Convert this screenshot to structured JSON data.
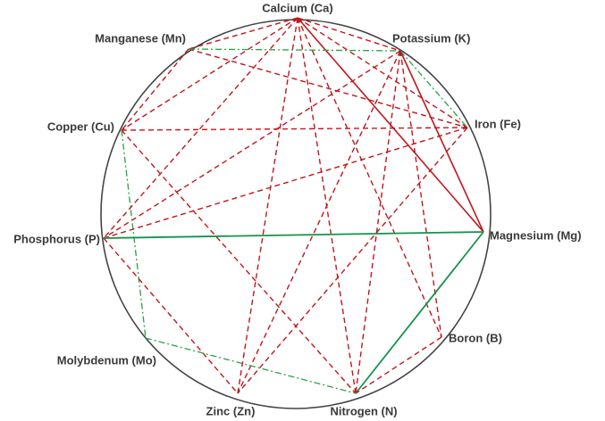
{
  "nodes": [
    {
      "label": "Calcium (Ca)"
    },
    {
      "label": "Potassium (K)"
    },
    {
      "label": "Iron (Fe)"
    },
    {
      "label": "Magnesium (Mg)"
    },
    {
      "label": "Boron (B)"
    },
    {
      "label": "Nitrogen (N)"
    },
    {
      "label": "Zinc (Zn)"
    },
    {
      "label": "Molybdenum (Mo)"
    },
    {
      "label": "Phosphorus (P)"
    },
    {
      "label": "Copper (Cu)"
    },
    {
      "label": "Manganese (Mn)"
    }
  ]
}
